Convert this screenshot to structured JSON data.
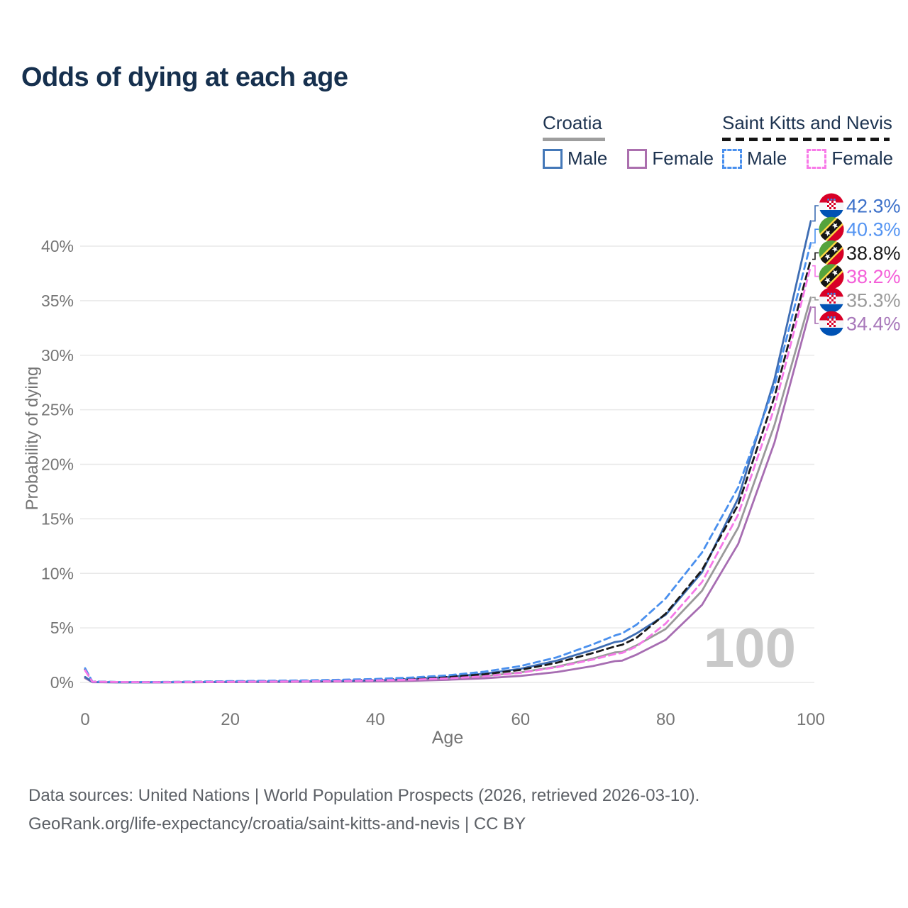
{
  "title": "Odds of dying at each age",
  "watermark": "100",
  "legend": {
    "groups": [
      {
        "name": "Croatia",
        "underline_style": "solid",
        "underline_color": "#9e9e9e",
        "items": [
          {
            "label": "Male",
            "color": "#4478b8",
            "dashed": false
          },
          {
            "label": "Female",
            "color": "#ab6fae",
            "dashed": false
          }
        ]
      },
      {
        "name": "Saint Kitts and Nevis",
        "underline_style": "dashed",
        "underline_color": "#151515",
        "items": [
          {
            "label": "Male",
            "color": "#4a90ee",
            "dashed": true
          },
          {
            "label": "Female",
            "color": "#f87ae8",
            "dashed": true
          }
        ]
      }
    ]
  },
  "footer": {
    "line1": "Data sources: United Nations | World Population Prospects (2026, retrieved 2026-03-10).",
    "line2": "GeoRank.org/life-expectancy/croatia/saint-kitts-and-nevis | CC BY"
  },
  "chart_data": {
    "type": "line",
    "title": "Odds of dying at each age",
    "xlabel": "Age",
    "ylabel": "Probability of dying",
    "xlim": [
      0,
      100
    ],
    "ylim_percent": [
      0,
      44
    ],
    "grid": "horizontal",
    "legend_position": "top-right",
    "xticks": [
      0,
      20,
      40,
      60,
      80,
      100
    ],
    "yticks": [
      "0%",
      "5%",
      "10%",
      "15%",
      "20%",
      "25%",
      "30%",
      "35%",
      "40%"
    ],
    "x": [
      0,
      1,
      5,
      10,
      15,
      20,
      25,
      30,
      35,
      40,
      45,
      50,
      55,
      60,
      65,
      70,
      73,
      74,
      76,
      80,
      85,
      90,
      95,
      100
    ],
    "series": [
      {
        "id": "croatia-male",
        "name": "Croatia Male",
        "flag": "hr",
        "color": "#3e6db3",
        "label_color": "#3c70c9",
        "dashed": false,
        "end_label": "42.3%",
        "values": [
          0.5,
          0.03,
          0.01,
          0.01,
          0.03,
          0.06,
          0.08,
          0.1,
          0.13,
          0.19,
          0.3,
          0.5,
          0.8,
          1.25,
          2.0,
          3.0,
          3.7,
          3.8,
          4.5,
          6.2,
          10.1,
          16.9,
          27.8,
          42.3
        ]
      },
      {
        "id": "skn-male",
        "name": "Saint Kitts and Nevis Male",
        "flag": "kn",
        "color": "#4a90ee",
        "label_color": "#5494f2",
        "dashed": true,
        "end_label": "40.3%",
        "values": [
          1.3,
          0.08,
          0.04,
          0.04,
          0.07,
          0.12,
          0.15,
          0.18,
          0.24,
          0.32,
          0.45,
          0.65,
          0.98,
          1.5,
          2.3,
          3.5,
          4.3,
          4.5,
          5.3,
          7.7,
          11.9,
          17.9,
          27.2,
          40.3
        ]
      },
      {
        "id": "skn-total",
        "name": "Saint Kitts and Nevis",
        "flag": "kn",
        "color": "#1a1a1a",
        "label_color": "#1a1a1a",
        "dashed": true,
        "end_label": "38.8%",
        "values": [
          1.2,
          0.07,
          0.03,
          0.03,
          0.05,
          0.09,
          0.11,
          0.14,
          0.18,
          0.24,
          0.34,
          0.5,
          0.74,
          1.15,
          1.8,
          2.7,
          3.3,
          3.45,
          4.1,
          6.3,
          10.3,
          16.3,
          26.2,
          38.8
        ]
      },
      {
        "id": "skn-female",
        "name": "Saint Kitts and Nevis Female",
        "flag": "kn",
        "color": "#f678e8",
        "label_color": "#f45fd8",
        "dashed": true,
        "end_label": "38.2%",
        "values": [
          1.1,
          0.06,
          0.03,
          0.02,
          0.04,
          0.06,
          0.08,
          0.1,
          0.13,
          0.18,
          0.25,
          0.37,
          0.56,
          0.88,
          1.4,
          2.1,
          2.6,
          2.7,
          3.3,
          5.4,
          9.2,
          15.4,
          25.2,
          38.2
        ]
      },
      {
        "id": "croatia-total",
        "name": "Croatia",
        "flag": "hr",
        "color": "#9a9a9a",
        "label_color": "#9a9a9a",
        "dashed": false,
        "end_label": "35.3%",
        "values": [
          0.45,
          0.03,
          0.01,
          0.01,
          0.02,
          0.04,
          0.06,
          0.07,
          0.1,
          0.14,
          0.22,
          0.36,
          0.58,
          0.92,
          1.45,
          2.2,
          2.75,
          2.8,
          3.4,
          4.9,
          8.4,
          14.2,
          23.6,
          35.3
        ]
      },
      {
        "id": "croatia-female",
        "name": "Croatia Female",
        "flag": "hr",
        "color": "#a76db2",
        "label_color": "#a979bb",
        "dashed": false,
        "end_label": "34.4%",
        "values": [
          0.4,
          0.02,
          0.01,
          0.01,
          0.02,
          0.03,
          0.04,
          0.05,
          0.07,
          0.1,
          0.15,
          0.24,
          0.38,
          0.6,
          0.95,
          1.5,
          1.95,
          2.0,
          2.55,
          3.9,
          7.1,
          12.7,
          22.0,
          34.4
        ]
      }
    ]
  }
}
